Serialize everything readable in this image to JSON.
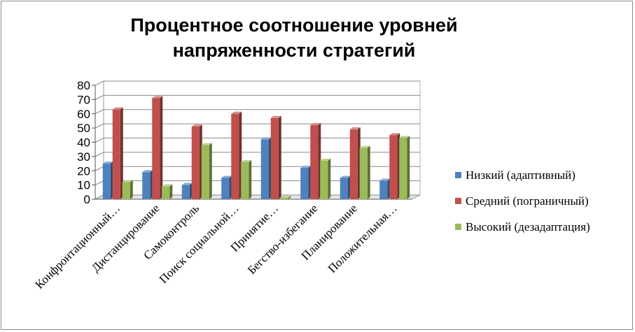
{
  "chart_data": {
    "type": "bar",
    "title": "Процентное соотношение уровней напряженности стратегий",
    "categories": [
      "Конфронтационный…",
      "Дистанцирование",
      "Самоконтроль",
      "Поиск социальной…",
      "Принятие…",
      "Бегство-избегание",
      "Планирование",
      "Положительная…"
    ],
    "series": [
      {
        "name": "Низкий (адаптивный)",
        "color": "#4f81bd",
        "values": [
          25,
          19,
          10,
          15,
          42,
          22,
          15,
          13
        ]
      },
      {
        "name": "Средний (пограничный)",
        "color": "#c0504d",
        "values": [
          63,
          71,
          51,
          60,
          57,
          52,
          49,
          45
        ]
      },
      {
        "name": "Высокий (дезадаптация)",
        "color": "#9bbb59",
        "values": [
          12,
          9,
          38,
          26,
          1,
          27,
          36,
          43
        ]
      }
    ],
    "ylim": [
      0,
      80
    ],
    "yticks": [
      "0",
      "10",
      "20",
      "30",
      "40",
      "50",
      "60",
      "70",
      "80"
    ],
    "grid": true,
    "legend_position": "right",
    "style": "3d-clustered-column"
  }
}
